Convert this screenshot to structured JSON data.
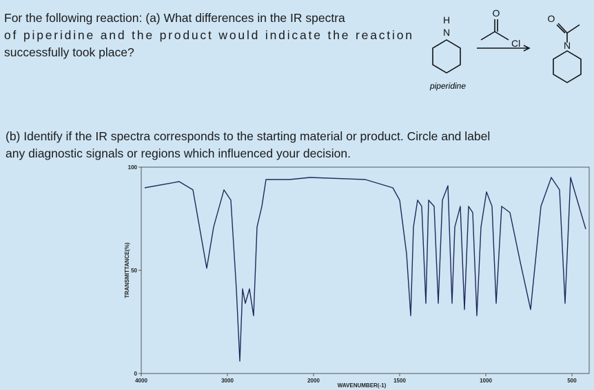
{
  "question_a": {
    "lines": [
      "For the following reaction: (a) What differences in the IR spectra",
      "of piperidine and the product would indicate the reaction",
      "successfully took place?"
    ]
  },
  "reaction": {
    "reactant_h": "H",
    "reactant_n": "N",
    "reagent_o": "O",
    "reagent_cl": "Cl",
    "product_o": "O",
    "product_n": "N",
    "reactant_name": "piperidine"
  },
  "question_b": {
    "lines": [
      "(b) Identify if the IR spectra corresponds to the starting material or product. Circle and label",
      "any diagnostic signals or regions which influenced your decision."
    ]
  },
  "spectrum": {
    "type": "line",
    "x_label": "WAVENUMBER(-1)",
    "y_label": "TRANSMITTANCE(%)",
    "xlim": [
      4000,
      400
    ],
    "ylim": [
      0,
      100
    ],
    "xticks": [
      4000,
      3000,
      2000,
      1500,
      1000,
      500
    ],
    "yticks": [
      0,
      50,
      100
    ],
    "color": "#1f2a5a",
    "x": [
      3960,
      3560,
      3400,
      3240,
      3160,
      3040,
      2960,
      2896,
      2856,
      2824,
      2792,
      2744,
      2696,
      2656,
      2600,
      2552,
      2280,
      2040,
      1700,
      1540,
      1500,
      1460,
      1436,
      1420,
      1396,
      1372,
      1348,
      1332,
      1300,
      1276,
      1252,
      1220,
      1196,
      1180,
      1148,
      1124,
      1100,
      1076,
      1052,
      1028,
      996,
      964,
      940,
      908,
      860,
      800,
      740,
      680,
      620,
      572,
      540,
      508,
      420
    ],
    "values": [
      90,
      93,
      89,
      51,
      71,
      89,
      84,
      41,
      6,
      41,
      34,
      41,
      28,
      71,
      81,
      94,
      94,
      95,
      94,
      90,
      84,
      58,
      28,
      71,
      84,
      81,
      34,
      84,
      81,
      34,
      84,
      91,
      34,
      71,
      81,
      31,
      81,
      78,
      28,
      71,
      88,
      81,
      34,
      81,
      78,
      54,
      31,
      81,
      95,
      89,
      34,
      95,
      70
    ]
  }
}
